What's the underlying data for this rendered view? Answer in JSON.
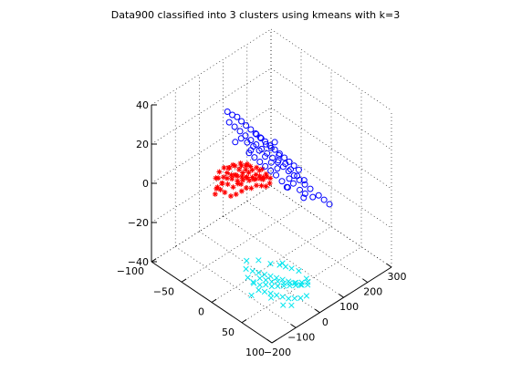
{
  "chart_data": {
    "type": "scatter",
    "title": "Data900 classified into 3 clusters using kmeans with k=3",
    "xlabel": "",
    "ylabel": "",
    "zlabel": "",
    "grid": true,
    "legend": "none",
    "view": "3d",
    "xlim": [
      -200,
      300
    ],
    "ylim": [
      -100,
      100
    ],
    "zlim": [
      -40,
      40
    ],
    "x_ticks": [
      -200,
      -100,
      0,
      100,
      200,
      300
    ],
    "y_ticks": [
      -100,
      -50,
      0,
      50,
      100
    ],
    "z_ticks": [
      -40,
      -20,
      0,
      20,
      40
    ],
    "x_tick_labels": [
      "−200",
      "−100",
      "0",
      "100",
      "200",
      "300"
    ],
    "y_tick_labels": [
      "−100",
      "−50",
      "0",
      "50",
      "100"
    ],
    "z_tick_labels": [
      "−40",
      "−20",
      "0",
      "20",
      "40"
    ],
    "series": [
      {
        "marker": "asterisk",
        "color": "#ff0000",
        "points": [
          [
            -135,
            -20,
            6
          ],
          [
            -120,
            -22,
            8
          ],
          [
            -110,
            -18,
            10
          ],
          [
            -100,
            -20,
            12
          ],
          [
            -95,
            -15,
            9
          ],
          [
            -90,
            -18,
            11
          ],
          [
            -85,
            -20,
            13
          ],
          [
            -80,
            -12,
            7
          ],
          [
            -75,
            -16,
            10
          ],
          [
            -70,
            -14,
            12
          ],
          [
            -65,
            -10,
            8
          ],
          [
            -60,
            -15,
            11
          ],
          [
            -55,
            -12,
            14
          ],
          [
            -50,
            -8,
            9
          ],
          [
            -45,
            -10,
            12
          ],
          [
            -40,
            -6,
            10
          ],
          [
            -35,
            -9,
            13
          ],
          [
            -30,
            -5,
            8
          ],
          [
            -25,
            -8,
            11
          ],
          [
            -20,
            -4,
            9
          ],
          [
            -15,
            -6,
            12
          ],
          [
            -10,
            -2,
            10
          ],
          [
            -5,
            -4,
            7
          ],
          [
            0,
            0,
            9
          ],
          [
            5,
            -2,
            11
          ],
          [
            10,
            2,
            8
          ],
          [
            15,
            0,
            6
          ],
          [
            20,
            3,
            9
          ],
          [
            25,
            2,
            7
          ],
          [
            30,
            5,
            4
          ],
          [
            -120,
            -25,
            12
          ],
          [
            -105,
            -25,
            14
          ],
          [
            -95,
            -10,
            4
          ],
          [
            -88,
            -24,
            15
          ],
          [
            -78,
            -8,
            4
          ],
          [
            -70,
            -22,
            14
          ],
          [
            -62,
            -5,
            5
          ],
          [
            -52,
            -20,
            14
          ],
          [
            -48,
            -3,
            6
          ],
          [
            -38,
            -15,
            14
          ],
          [
            -32,
            -1,
            5
          ],
          [
            -22,
            -14,
            13
          ],
          [
            -18,
            2,
            6
          ],
          [
            -8,
            -12,
            12
          ],
          [
            -2,
            4,
            5
          ],
          [
            8,
            -8,
            11
          ],
          [
            12,
            6,
            4
          ],
          [
            22,
            -4,
            10
          ],
          [
            -140,
            -16,
            10
          ],
          [
            -128,
            -14,
            9
          ],
          [
            -115,
            -12,
            7
          ],
          [
            -102,
            -28,
            10
          ],
          [
            -92,
            -26,
            7
          ],
          [
            -82,
            -4,
            12
          ],
          [
            -72,
            -2,
            10
          ],
          [
            -58,
            -24,
            9
          ],
          [
            -42,
            -20,
            8
          ],
          [
            -28,
            -18,
            7
          ],
          [
            -12,
            -16,
            6
          ],
          [
            2,
            -10,
            5
          ],
          [
            18,
            -6,
            5
          ],
          [
            35,
            4,
            6
          ],
          [
            -66,
            -18,
            16
          ],
          [
            -44,
            -14,
            16
          ],
          [
            -26,
            -10,
            15
          ],
          [
            -60,
            -28,
            12
          ]
        ]
      },
      {
        "marker": "x",
        "color": "#00e5ee",
        "points": [
          [
            -200,
            60,
            -15
          ],
          [
            -190,
            65,
            -17
          ],
          [
            -180,
            62,
            -19
          ],
          [
            -170,
            68,
            -16
          ],
          [
            -160,
            64,
            -21
          ],
          [
            -150,
            70,
            -18
          ],
          [
            -140,
            66,
            -22
          ],
          [
            -130,
            72,
            -20
          ],
          [
            -120,
            68,
            -24
          ],
          [
            -110,
            74,
            -21
          ],
          [
            -100,
            70,
            -25
          ],
          [
            -90,
            76,
            -23
          ],
          [
            -80,
            72,
            -26
          ],
          [
            -70,
            78,
            -24
          ],
          [
            -60,
            74,
            -27
          ],
          [
            -50,
            80,
            -25
          ],
          [
            -40,
            76,
            -28
          ],
          [
            -30,
            82,
            -26
          ],
          [
            -20,
            78,
            -29
          ],
          [
            -10,
            84,
            -27
          ],
          [
            0,
            80,
            -30
          ],
          [
            -195,
            55,
            -12
          ],
          [
            -175,
            58,
            -14
          ],
          [
            -155,
            60,
            -16
          ],
          [
            -135,
            62,
            -18
          ],
          [
            -115,
            64,
            -20
          ],
          [
            -95,
            66,
            -22
          ],
          [
            -75,
            68,
            -24
          ],
          [
            -55,
            70,
            -26
          ],
          [
            -35,
            72,
            -28
          ],
          [
            -15,
            74,
            -30
          ],
          [
            -185,
            72,
            -20
          ],
          [
            -165,
            74,
            -22
          ],
          [
            -145,
            76,
            -24
          ],
          [
            -125,
            78,
            -26
          ],
          [
            -105,
            80,
            -28
          ],
          [
            -85,
            82,
            -30
          ],
          [
            -65,
            84,
            -31
          ],
          [
            -45,
            86,
            -32
          ],
          [
            -25,
            88,
            -32
          ],
          [
            -205,
            68,
            -22
          ],
          [
            -158,
            82,
            -24
          ],
          [
            -118,
            86,
            -30
          ],
          [
            -72,
            62,
            -18
          ],
          [
            -52,
            64,
            -20
          ],
          [
            -32,
            66,
            -22
          ],
          [
            -12,
            70,
            -24
          ],
          [
            5,
            76,
            -28
          ],
          [
            -180,
            50,
            -10
          ],
          [
            -140,
            54,
            -12
          ],
          [
            -100,
            58,
            -16
          ],
          [
            -60,
            62,
            -18
          ],
          [
            -88,
            88,
            -32
          ]
        ]
      },
      {
        "marker": "o",
        "color": "#0000ff",
        "points": [
          [
            100,
            -90,
            10
          ],
          [
            110,
            -85,
            8
          ],
          [
            120,
            -80,
            6
          ],
          [
            130,
            -75,
            4
          ],
          [
            140,
            -70,
            2
          ],
          [
            150,
            -65,
            0
          ],
          [
            160,
            -60,
            -2
          ],
          [
            170,
            -55,
            -4
          ],
          [
            180,
            -50,
            -6
          ],
          [
            190,
            -45,
            -8
          ],
          [
            200,
            -40,
            -10
          ],
          [
            210,
            -35,
            -12
          ],
          [
            220,
            -30,
            -14
          ],
          [
            230,
            -25,
            -16
          ],
          [
            240,
            -20,
            -18
          ],
          [
            250,
            -15,
            -20
          ],
          [
            105,
            -95,
            14
          ],
          [
            118,
            -92,
            12
          ],
          [
            128,
            -88,
            11
          ],
          [
            136,
            -84,
            9
          ],
          [
            145,
            -80,
            7
          ],
          [
            155,
            -76,
            5
          ],
          [
            165,
            -72,
            3
          ],
          [
            175,
            -68,
            1
          ],
          [
            185,
            -64,
            -1
          ],
          [
            195,
            -60,
            -3
          ],
          [
            205,
            -56,
            -5
          ],
          [
            215,
            -52,
            -7
          ],
          [
            225,
            -48,
            -9
          ],
          [
            235,
            -44,
            -11
          ],
          [
            245,
            -40,
            -13
          ],
          [
            255,
            -36,
            -15
          ],
          [
            112,
            -75,
            4
          ],
          [
            125,
            -70,
            2
          ],
          [
            138,
            -65,
            0
          ],
          [
            150,
            -60,
            -2
          ],
          [
            162,
            -55,
            -5
          ],
          [
            175,
            -50,
            -8
          ],
          [
            188,
            -45,
            -11
          ],
          [
            200,
            -30,
            -14
          ],
          [
            212,
            -28,
            -17
          ],
          [
            224,
            -22,
            -20
          ],
          [
            236,
            -18,
            -22
          ],
          [
            248,
            -10,
            -23
          ],
          [
            170,
            -40,
            -12
          ],
          [
            182,
            -35,
            -15
          ],
          [
            194,
            -30,
            -18
          ],
          [
            150,
            -50,
            -8
          ],
          [
            160,
            -45,
            -10
          ],
          [
            140,
            -55,
            -6
          ],
          [
            130,
            -60,
            -4
          ],
          [
            120,
            -65,
            -2
          ],
          [
            260,
            -5,
            -22
          ],
          [
            270,
            0,
            -24
          ],
          [
            280,
            5,
            -26
          ],
          [
            158,
            -68,
            4
          ],
          [
            168,
            -64,
            2
          ],
          [
            178,
            -60,
            -1
          ],
          [
            190,
            -56,
            -3
          ],
          [
            202,
            -48,
            -6
          ],
          [
            214,
            -42,
            -10
          ],
          [
            226,
            -38,
            -13
          ],
          [
            238,
            -32,
            -16
          ],
          [
            252,
            -26,
            -18
          ],
          [
            145,
            -72,
            -4
          ],
          [
            185,
            -42,
            -6
          ],
          [
            205,
            -36,
            -20
          ],
          [
            220,
            -14,
            -22
          ],
          [
            100,
            -80,
            2
          ],
          [
            210,
            -58,
            -2
          ]
        ]
      }
    ]
  }
}
